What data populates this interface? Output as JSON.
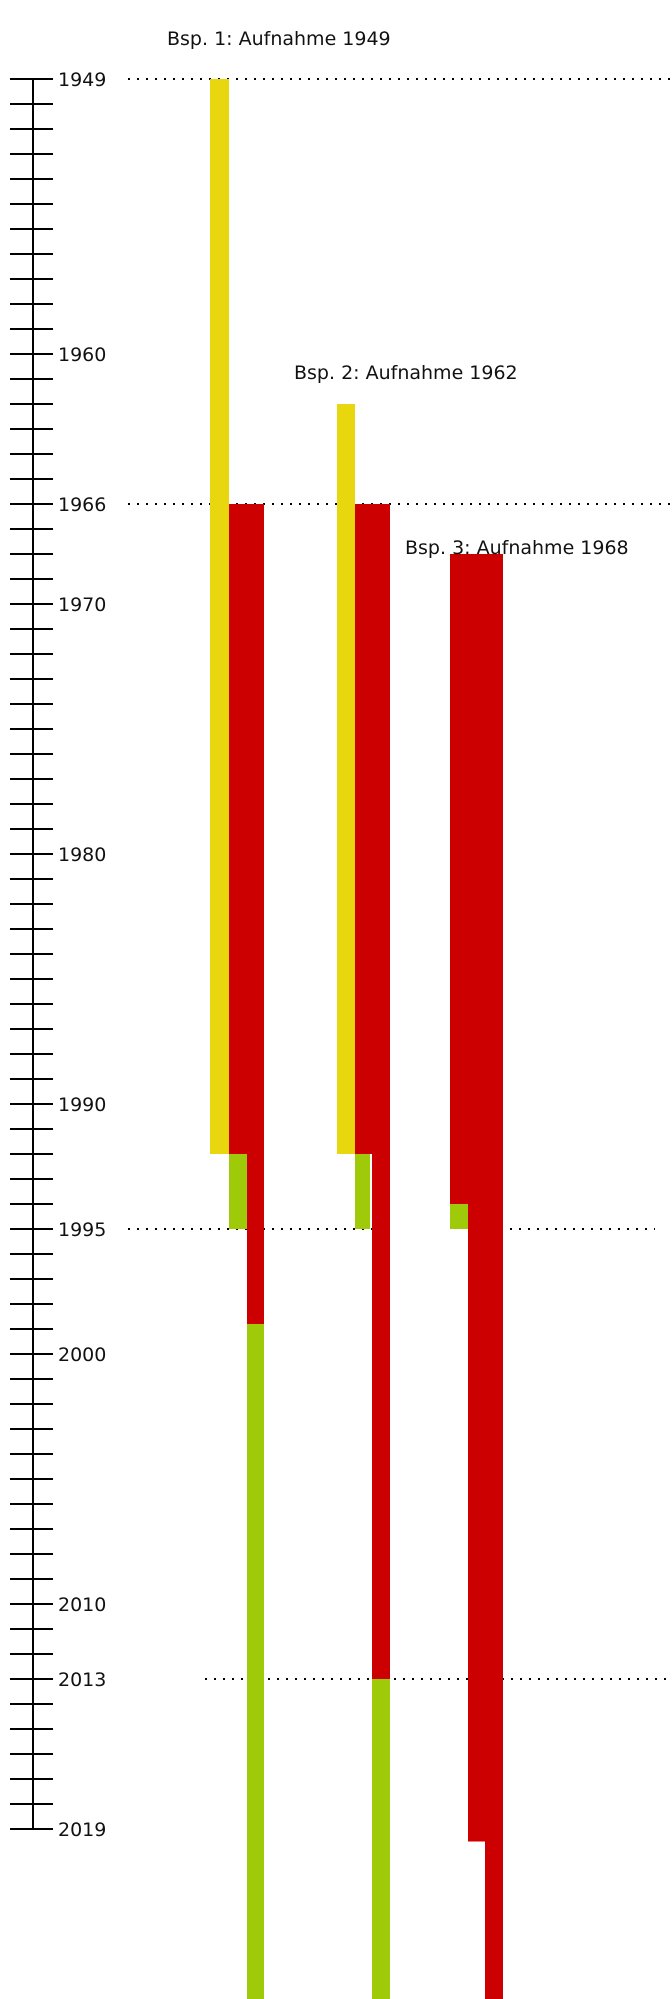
{
  "colors": {
    "yellow": "#E8D70E",
    "red": "#CC0000",
    "green": "#9ECA0A",
    "axis": "#000000"
  },
  "axis": {
    "start_year": 1949,
    "end_year": 2019,
    "labeled_years": [
      1949,
      1960,
      1966,
      1970,
      1980,
      1990,
      1995,
      2000,
      2010,
      2013,
      2019
    ]
  },
  "reference_lines": [
    1949,
    1966,
    1995,
    2013
  ],
  "examples": [
    {
      "title": "Bsp. 1: Aufnahme 1949",
      "bars": [
        {
          "color": "yellow",
          "from": 1949,
          "to": 1992
        },
        {
          "color": "red",
          "from": 1966,
          "to": 1992
        },
        {
          "color": "green",
          "from": 1992,
          "to": 1995
        },
        {
          "color": "red",
          "from": 1992,
          "to": 1998.8
        },
        {
          "color": "green",
          "from": 1998.8,
          "to": 2026.7
        }
      ]
    },
    {
      "title": "Bsp. 2: Aufnahme 1962",
      "bars": [
        {
          "color": "yellow",
          "from": 1962,
          "to": 1992
        },
        {
          "color": "red",
          "from": 1966,
          "to": 1992
        },
        {
          "color": "green",
          "from": 1992,
          "to": 1995
        },
        {
          "color": "red",
          "from": 1992,
          "to": 2013
        },
        {
          "color": "green",
          "from": 2013,
          "to": 2026.7
        }
      ]
    },
    {
      "title": "Bsp. 3: Aufnahme 1968",
      "bars": [
        {
          "color": "red",
          "from": 1968,
          "to": 1994
        },
        {
          "color": "green",
          "from": 1994,
          "to": 1995
        },
        {
          "color": "red",
          "from": 1968,
          "to": 2019.5
        },
        {
          "color": "red",
          "from": 1968,
          "to": 2026.7
        }
      ]
    }
  ]
}
